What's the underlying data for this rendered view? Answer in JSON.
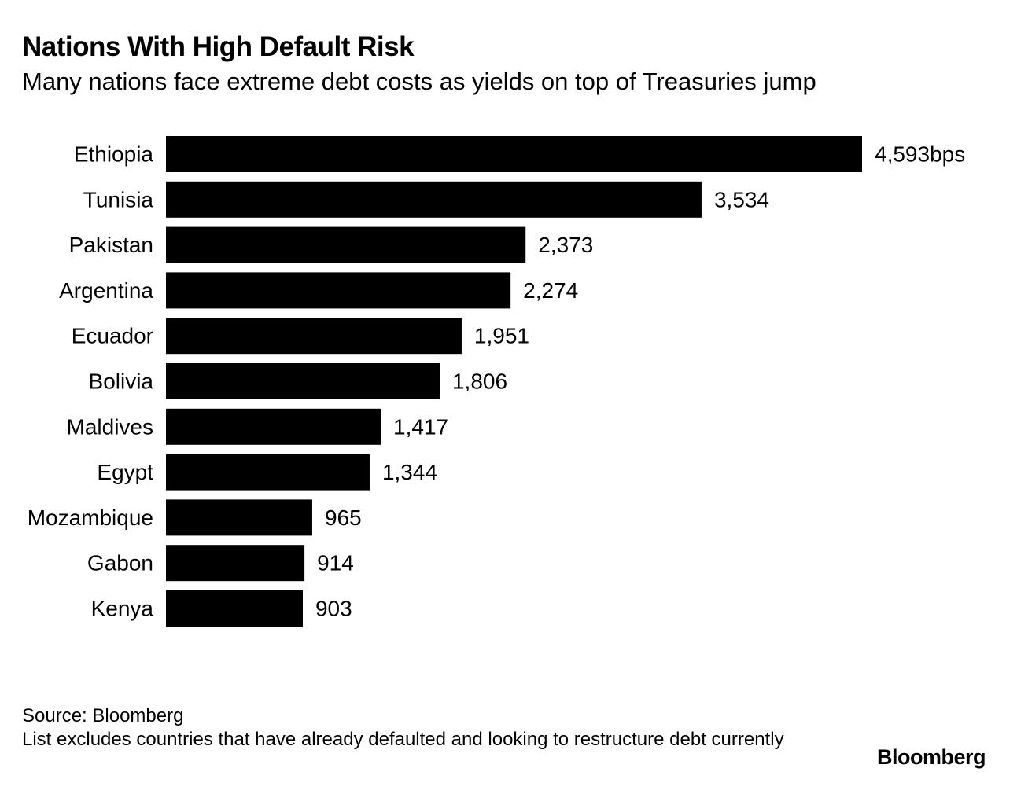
{
  "header": {
    "title": "Nations With High Default Risk",
    "subtitle": "Many nations face extreme debt costs as yields on top of Treasuries jump"
  },
  "chart_data": {
    "type": "bar",
    "orientation": "horizontal",
    "title": "Nations With High Default Risk",
    "subtitle": "Many nations face extreme debt costs as yields on top of Treasuries jump",
    "categories": [
      "Ethiopia",
      "Tunisia",
      "Pakistan",
      "Argentina",
      "Ecuador",
      "Bolivia",
      "Maldives",
      "Egypt",
      "Mozambique",
      "Gabon",
      "Kenya"
    ],
    "values": [
      4593,
      3534,
      2373,
      2274,
      1951,
      1806,
      1417,
      1344,
      965,
      914,
      903
    ],
    "value_labels": [
      "4,593bps",
      "3,534",
      "2,373",
      "2,274",
      "1,951",
      "1,806",
      "1,417",
      "1,344",
      "965",
      "914",
      "903"
    ],
    "units": "bps",
    "xlim": [
      0,
      4593
    ],
    "bar_color": "#000000",
    "grid": false,
    "legend": "none"
  },
  "footer": {
    "source": "Source: Bloomberg",
    "note": "List excludes countries that have already defaulted and looking to restructure debt currently",
    "brand": "Bloomberg"
  }
}
